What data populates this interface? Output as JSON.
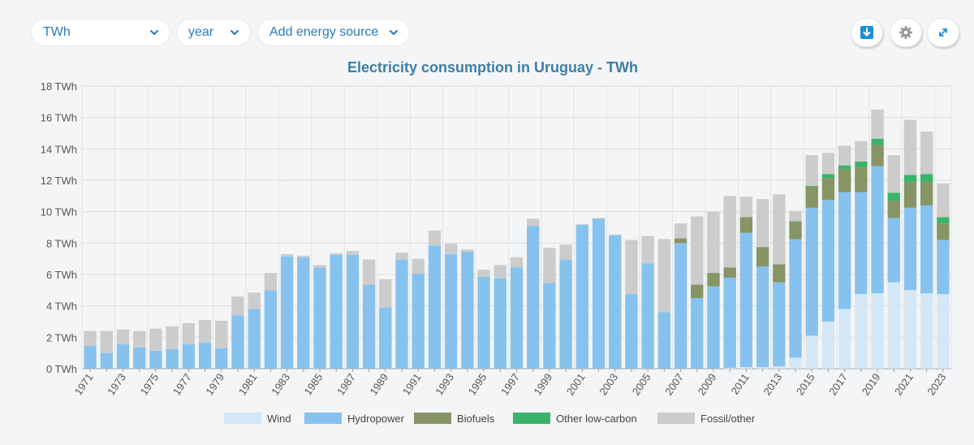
{
  "controls": {
    "unit_select": "TWh",
    "period_select": "year",
    "add_source_button": "Add energy source"
  },
  "colors": {
    "accent": "#2a7ab8",
    "download_icon_bg": "#1b8fd6"
  },
  "icons": {
    "download": "download-icon",
    "settings": "gear-icon",
    "fullscreen": "expand-icon"
  },
  "chart_data": {
    "type": "bar",
    "stacked": true,
    "title": "Electricity consumption in Uruguay -  TWh",
    "xlabel": "",
    "ylabel": "",
    "ylim": [
      0,
      18
    ],
    "yticks": [
      "0 TWh",
      "2 TWh",
      "4 TWh",
      "6 TWh",
      "8 TWh",
      "10 TWh",
      "12 TWh",
      "14 TWh",
      "16 TWh",
      "18 TWh"
    ],
    "grid": true,
    "legend_position": "bottom",
    "categories": [
      "1971",
      "1972",
      "1973",
      "1974",
      "1975",
      "1976",
      "1977",
      "1978",
      "1979",
      "1980",
      "1981",
      "1982",
      "1983",
      "1984",
      "1985",
      "1986",
      "1987",
      "1988",
      "1989",
      "1990",
      "1991",
      "1992",
      "1993",
      "1994",
      "1995",
      "1996",
      "1997",
      "1998",
      "1999",
      "2000",
      "2001",
      "2002",
      "2003",
      "2004",
      "2005",
      "2006",
      "2007",
      "2008",
      "2009",
      "2010",
      "2011",
      "2012",
      "2013",
      "2014",
      "2015",
      "2016",
      "2017",
      "2018",
      "2019",
      "2020",
      "2021",
      "2022",
      "2023"
    ],
    "series": [
      {
        "name": "Wind",
        "color": "#d4e7f7",
        "values": [
          0,
          0,
          0,
          0,
          0,
          0,
          0,
          0,
          0,
          0,
          0,
          0,
          0,
          0,
          0,
          0,
          0,
          0,
          0,
          0,
          0,
          0,
          0,
          0,
          0,
          0,
          0,
          0,
          0,
          0,
          0,
          0,
          0,
          0,
          0,
          0,
          0,
          0,
          0,
          0.05,
          0.1,
          0.1,
          0.15,
          0.7,
          2.1,
          3.0,
          3.8,
          4.75,
          4.8,
          5.5,
          5.0,
          4.8,
          4.75
        ]
      },
      {
        "name": "Hydropower",
        "color": "#87c2ee",
        "values": [
          1.45,
          1.0,
          1.55,
          1.35,
          1.15,
          1.25,
          1.55,
          1.65,
          1.3,
          3.4,
          3.8,
          5.0,
          7.15,
          7.1,
          6.45,
          7.25,
          7.25,
          5.35,
          3.9,
          6.95,
          6.05,
          7.85,
          7.3,
          7.45,
          5.85,
          5.75,
          6.45,
          9.1,
          5.45,
          6.95,
          9.15,
          9.55,
          8.5,
          4.75,
          6.7,
          3.6,
          8.0,
          4.5,
          5.25,
          5.75,
          8.55,
          6.4,
          5.35,
          7.55,
          8.15,
          7.75,
          7.45,
          6.5,
          8.1,
          4.1,
          5.25,
          5.6,
          3.45
        ]
      },
      {
        "name": "Biofuels",
        "color": "#879466",
        "values": [
          0,
          0,
          0,
          0,
          0,
          0,
          0,
          0,
          0,
          0,
          0,
          0,
          0,
          0,
          0,
          0,
          0,
          0,
          0,
          0,
          0,
          0,
          0,
          0,
          0,
          0,
          0,
          0,
          0,
          0,
          0,
          0,
          0,
          0,
          0,
          0,
          0.3,
          0.85,
          0.85,
          0.65,
          1.0,
          1.25,
          1.15,
          1.1,
          1.35,
          1.4,
          1.45,
          1.6,
          1.35,
          1.1,
          1.65,
          1.5,
          1.05
        ]
      },
      {
        "name": "Other low-carbon",
        "color": "#3ab46a",
        "values": [
          0,
          0,
          0,
          0,
          0,
          0,
          0,
          0,
          0,
          0,
          0,
          0,
          0,
          0,
          0,
          0,
          0,
          0,
          0,
          0,
          0,
          0,
          0,
          0,
          0,
          0,
          0,
          0,
          0,
          0,
          0,
          0,
          0,
          0,
          0,
          0,
          0,
          0,
          0,
          0,
          0,
          0,
          0,
          0.05,
          0.05,
          0.25,
          0.25,
          0.35,
          0.4,
          0.5,
          0.45,
          0.5,
          0.4
        ]
      },
      {
        "name": "Fossil/other",
        "color": "#cccccc",
        "values": [
          0.95,
          1.4,
          0.95,
          1.05,
          1.4,
          1.45,
          1.35,
          1.45,
          1.75,
          1.2,
          1.05,
          1.1,
          0.15,
          0.1,
          0.15,
          0.1,
          0.25,
          1.6,
          1.8,
          0.45,
          0.95,
          0.95,
          0.65,
          0.15,
          0.45,
          0.85,
          0.65,
          0.45,
          2.25,
          0.95,
          0.05,
          0.05,
          0.05,
          3.45,
          1.75,
          4.65,
          0.95,
          4.35,
          3.9,
          4.55,
          1.3,
          3.05,
          4.45,
          0.65,
          1.95,
          1.35,
          1.25,
          1.3,
          1.85,
          2.4,
          3.5,
          2.7,
          2.15
        ]
      }
    ]
  }
}
